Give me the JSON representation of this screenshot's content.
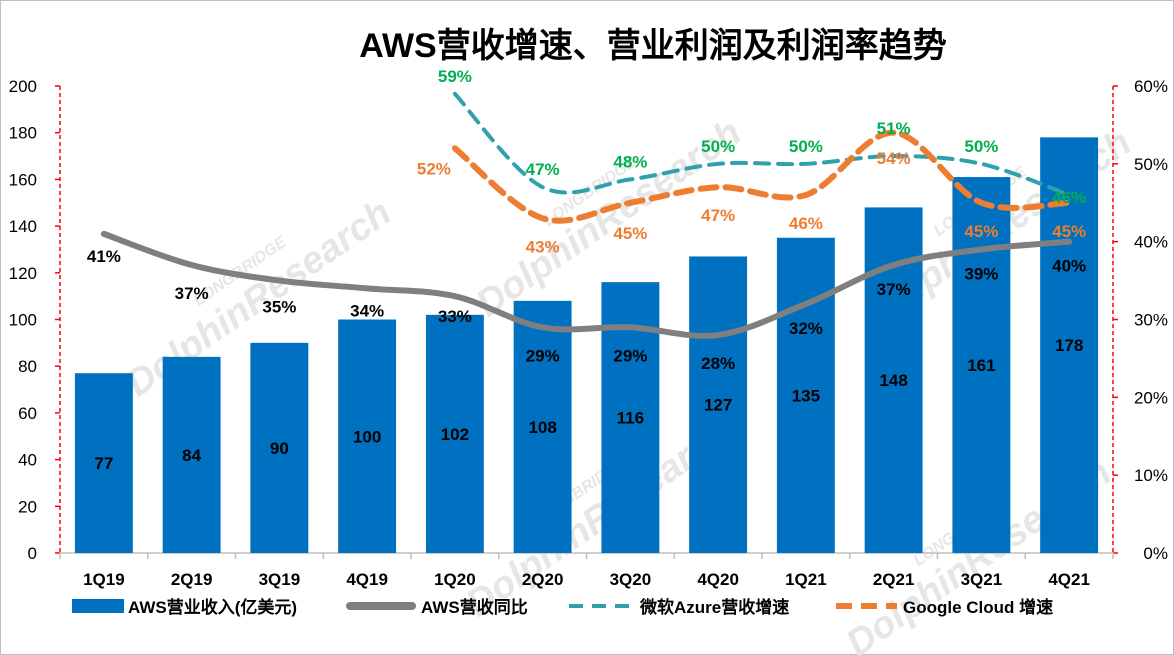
{
  "chart_data": {
    "type": "bar",
    "title": "AWS营收增速、营业利润及利润率趋势",
    "categories": [
      "1Q19",
      "2Q19",
      "3Q19",
      "4Q19",
      "1Q20",
      "2Q20",
      "3Q20",
      "4Q20",
      "1Q21",
      "2Q21",
      "3Q21",
      "4Q21"
    ],
    "y_left": {
      "min": 0,
      "max": 200,
      "step": 20,
      "ticks": [
        "0",
        "20",
        "40",
        "60",
        "80",
        "100",
        "120",
        "140",
        "160",
        "180",
        "200"
      ]
    },
    "y_right": {
      "min": 0,
      "max": 60,
      "step": 10,
      "ticks": [
        "0%",
        "10%",
        "20%",
        "30%",
        "40%",
        "50%",
        "60%"
      ]
    },
    "grid": false,
    "legend_position": "bottom",
    "series": [
      {
        "name": "AWS营业收入(亿美元)",
        "kind": "bar",
        "axis": "left",
        "color": "#0070c0",
        "values": [
          77,
          84,
          90,
          100,
          102,
          108,
          116,
          127,
          135,
          148,
          161,
          178
        ],
        "labels": [
          "77",
          "84",
          "90",
          "100",
          "102",
          "108",
          "116",
          "127",
          "135",
          "148",
          "161",
          "178"
        ]
      },
      {
        "name": "AWS营收同比",
        "kind": "line",
        "axis": "right",
        "color": "#7f7f7f",
        "values": [
          41,
          37,
          35,
          34,
          33,
          29,
          29,
          28,
          32,
          37,
          39,
          40
        ],
        "labels": [
          "41%",
          "37%",
          "35%",
          "34%",
          "33%",
          "29%",
          "29%",
          "28%",
          "32%",
          "37%",
          "39%",
          "40%"
        ]
      },
      {
        "name": "微软Azure营收增速",
        "kind": "dashed-line",
        "axis": "right",
        "color": "#31a0ad",
        "label_color": "#00b050",
        "values": [
          null,
          null,
          null,
          null,
          59,
          47,
          48,
          50,
          50,
          51,
          50,
          46
        ],
        "labels": [
          "",
          "",
          "",
          "",
          "59%",
          "47%",
          "48%",
          "50%",
          "50%",
          "51%",
          "50%",
          "46%"
        ]
      },
      {
        "name": "Google Cloud 增速",
        "kind": "dashed-line",
        "axis": "right",
        "color": "#ed7d31",
        "label_color": "#ed7d31",
        "values": [
          null,
          null,
          null,
          null,
          52,
          43,
          45,
          47,
          46,
          54,
          45,
          45
        ],
        "labels": [
          "",
          "",
          "",
          "",
          "52%",
          "43%",
          "45%",
          "47%",
          "46%",
          "54%",
          "45%",
          "45%"
        ]
      }
    ]
  },
  "watermark": {
    "brand": "LONGBRIDGE",
    "name": "DolphinResearch"
  },
  "legend": {
    "bar": "AWS营业收入(亿美元)",
    "gray": "AWS营收同比",
    "azure": "微软Azure营收增速",
    "google": "Google Cloud 增速"
  }
}
